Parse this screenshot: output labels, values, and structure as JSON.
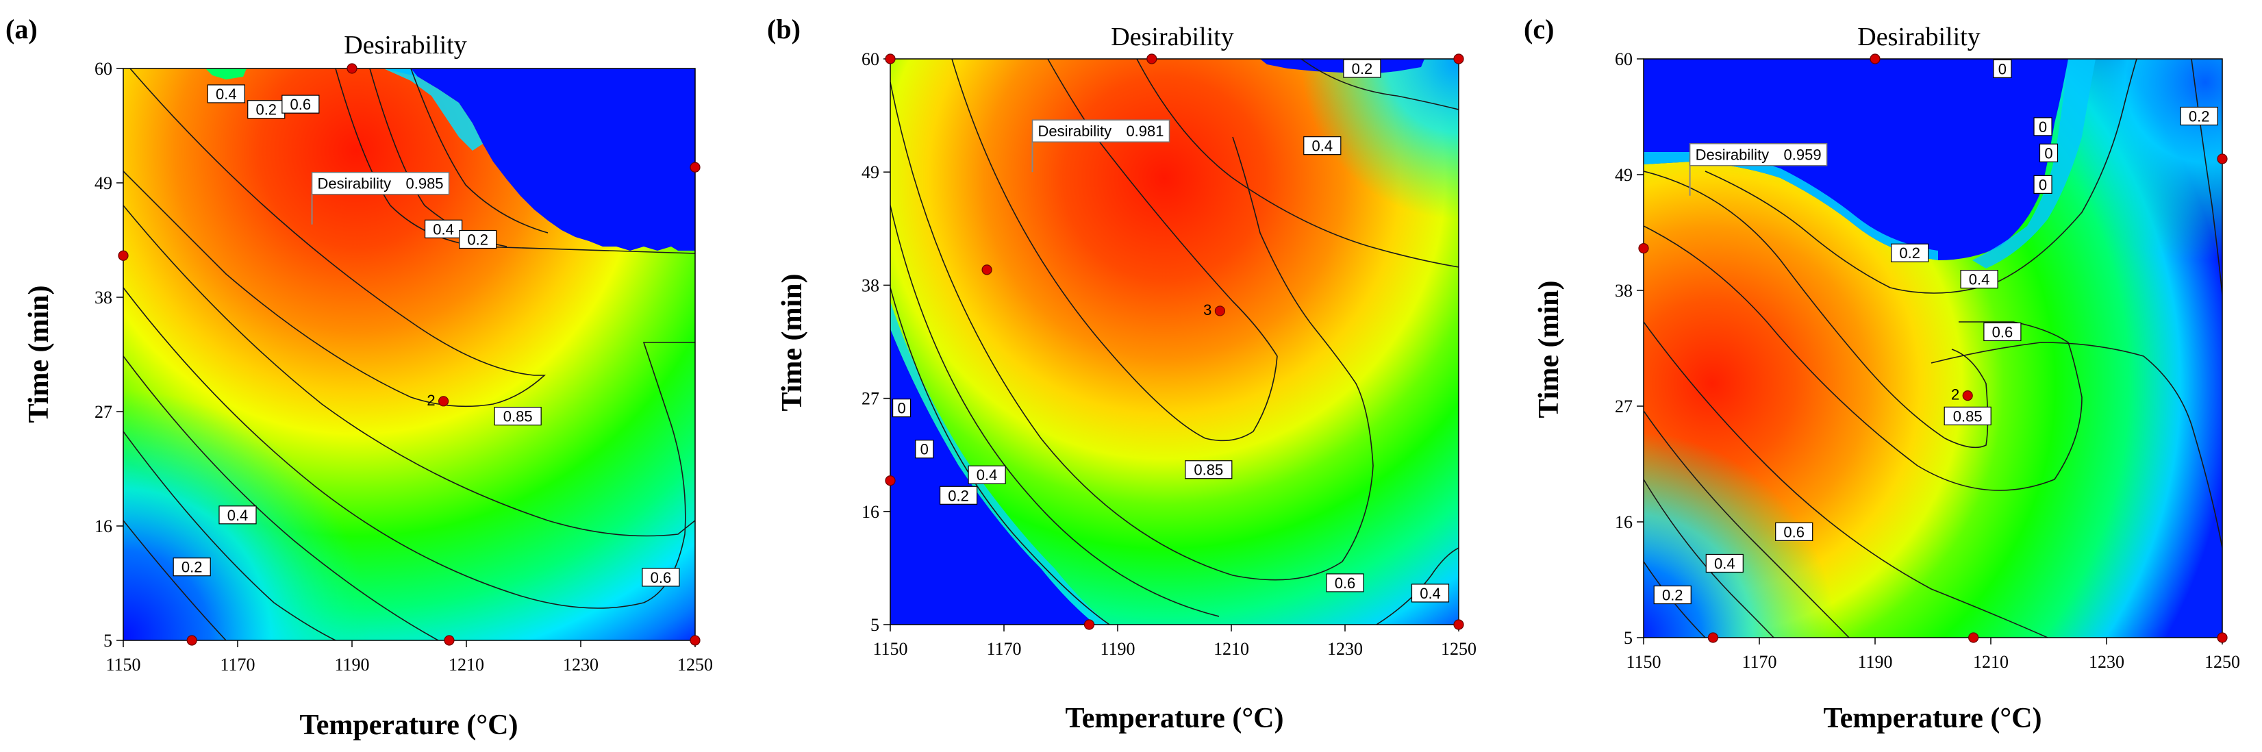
{
  "chart_data": [
    {
      "type": "heatmap",
      "panel_label": "(a)",
      "title": "Desirability",
      "xlabel": "Temperature (°C)",
      "ylabel": "Time (min)",
      "xlim": [
        1150,
        1250
      ],
      "ylim": [
        5,
        60
      ],
      "xticks": [
        "1150",
        "1170",
        "1190",
        "1210",
        "1230",
        "1250"
      ],
      "yticks": [
        "5",
        "16",
        "27",
        "38",
        "49",
        "60"
      ],
      "optimum": {
        "label": "Desirability",
        "value": "0.985",
        "x": 1183,
        "y": 45
      },
      "contour_labels": [
        {
          "text": "0.4",
          "x": 1168,
          "y": 57.5
        },
        {
          "text": "0.2",
          "x": 1175,
          "y": 56
        },
        {
          "text": "0.6",
          "x": 1181,
          "y": 56.5
        },
        {
          "text": "0.4",
          "x": 1206,
          "y": 44.5
        },
        {
          "text": "0.2",
          "x": 1212,
          "y": 43.5
        },
        {
          "text": "0.85",
          "x": 1219,
          "y": 26.5
        },
        {
          "text": "0.4",
          "x": 1170,
          "y": 17
        },
        {
          "text": "0.2",
          "x": 1162,
          "y": 12
        },
        {
          "text": "0.6",
          "x": 1244,
          "y": 11
        }
      ],
      "design_points": [
        {
          "x": 1190,
          "y": 60,
          "label": ""
        },
        {
          "x": 1250,
          "y": 50.5,
          "label": ""
        },
        {
          "x": 1150,
          "y": 42,
          "label": ""
        },
        {
          "x": 1206,
          "y": 28,
          "label": "2"
        },
        {
          "x": 1162,
          "y": 5,
          "label": ""
        },
        {
          "x": 1207,
          "y": 5,
          "label": ""
        },
        {
          "x": 1250,
          "y": 5,
          "label": ""
        }
      ]
    },
    {
      "type": "heatmap",
      "panel_label": "(b)",
      "title": "Desirability",
      "xlabel": "Temperature (°C)",
      "ylabel": "Time (min)",
      "xlim": [
        1150,
        1250
      ],
      "ylim": [
        5,
        60
      ],
      "xticks": [
        "1150",
        "1170",
        "1190",
        "1210",
        "1230",
        "1250"
      ],
      "yticks": [
        "5",
        "16",
        "27",
        "38",
        "49",
        "60"
      ],
      "optimum": {
        "label": "Desirability",
        "value": "0.981",
        "x": 1175,
        "y": 49
      },
      "contour_labels": [
        {
          "text": "0.2",
          "x": 1233,
          "y": 59
        },
        {
          "text": "0.4",
          "x": 1226,
          "y": 51.5
        },
        {
          "text": "0.85",
          "x": 1206,
          "y": 20
        },
        {
          "text": "0.6",
          "x": 1230,
          "y": 9
        },
        {
          "text": "0.4",
          "x": 1245,
          "y": 8
        },
        {
          "text": "0",
          "x": 1152,
          "y": 26
        },
        {
          "text": "0",
          "x": 1156,
          "y": 22
        },
        {
          "text": "0.4",
          "x": 1167,
          "y": 19.5
        },
        {
          "text": "0.2",
          "x": 1162,
          "y": 17.5
        }
      ],
      "design_points": [
        {
          "x": 1150,
          "y": 60,
          "label": ""
        },
        {
          "x": 1196,
          "y": 60,
          "label": ""
        },
        {
          "x": 1250,
          "y": 60,
          "label": ""
        },
        {
          "x": 1167,
          "y": 39.5,
          "label": ""
        },
        {
          "x": 1208,
          "y": 35.5,
          "label": "3"
        },
        {
          "x": 1150,
          "y": 19,
          "label": ""
        },
        {
          "x": 1185,
          "y": 5,
          "label": ""
        },
        {
          "x": 1250,
          "y": 5,
          "label": ""
        }
      ]
    },
    {
      "type": "heatmap",
      "panel_label": "(c)",
      "title": "Desirability",
      "xlabel": "Temperature (°C)",
      "ylabel": "Time (min)",
      "xlim": [
        1150,
        1250
      ],
      "ylim": [
        5,
        60
      ],
      "xticks": [
        "1150",
        "1170",
        "1190",
        "1210",
        "1230",
        "1250"
      ],
      "yticks": [
        "5",
        "16",
        "27",
        "38",
        "49",
        "60"
      ],
      "optimum": {
        "label": "Desirability",
        "value": "0.959",
        "x": 1158,
        "y": 47
      },
      "contour_labels": [
        {
          "text": "0",
          "x": 1212,
          "y": 59
        },
        {
          "text": "0",
          "x": 1219,
          "y": 53.5
        },
        {
          "text": "0",
          "x": 1220,
          "y": 51
        },
        {
          "text": "0",
          "x": 1219,
          "y": 48
        },
        {
          "text": "0.2",
          "x": 1246,
          "y": 54.5
        },
        {
          "text": "0.2",
          "x": 1196,
          "y": 41.5
        },
        {
          "text": "0.4",
          "x": 1208,
          "y": 39
        },
        {
          "text": "0.6",
          "x": 1212,
          "y": 34
        },
        {
          "text": "0.85",
          "x": 1206,
          "y": 26
        },
        {
          "text": "0.6",
          "x": 1176,
          "y": 15
        },
        {
          "text": "0.4",
          "x": 1164,
          "y": 12
        },
        {
          "text": "0.2",
          "x": 1155,
          "y": 9
        }
      ],
      "design_points": [
        {
          "x": 1190,
          "y": 60,
          "label": ""
        },
        {
          "x": 1250,
          "y": 50.5,
          "label": ""
        },
        {
          "x": 1150,
          "y": 42,
          "label": ""
        },
        {
          "x": 1206,
          "y": 28,
          "label": "2"
        },
        {
          "x": 1162,
          "y": 5,
          "label": ""
        },
        {
          "x": 1207,
          "y": 5,
          "label": ""
        },
        {
          "x": 1250,
          "y": 5,
          "label": ""
        }
      ]
    }
  ]
}
